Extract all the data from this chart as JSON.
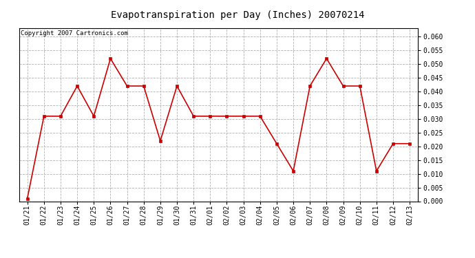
{
  "title": "Evapotranspiration per Day (Inches) 20070214",
  "copyright_text": "Copyright 2007 Cartronics.com",
  "line_color": "#cc0000",
  "marker_color": "#cc0000",
  "background_color": "#ffffff",
  "grid_color": "#b0b0b0",
  "ylim": [
    0.0,
    0.063
  ],
  "yticks": [
    0.0,
    0.005,
    0.01,
    0.015,
    0.02,
    0.025,
    0.03,
    0.035,
    0.04,
    0.045,
    0.05,
    0.055,
    0.06
  ],
  "dates": [
    "01/21",
    "01/22",
    "01/23",
    "01/24",
    "01/25",
    "01/26",
    "01/27",
    "01/28",
    "01/29",
    "01/30",
    "01/31",
    "02/01",
    "02/02",
    "02/03",
    "02/04",
    "02/05",
    "02/06",
    "02/07",
    "02/08",
    "02/09",
    "02/10",
    "02/11",
    "02/12",
    "02/13"
  ],
  "values": [
    0.001,
    0.031,
    0.031,
    0.042,
    0.031,
    0.052,
    0.042,
    0.042,
    0.022,
    0.042,
    0.031,
    0.031,
    0.031,
    0.031,
    0.031,
    0.021,
    0.011,
    0.042,
    0.052,
    0.042,
    0.042,
    0.011,
    0.021,
    0.021
  ],
  "title_fontsize": 10,
  "tick_fontsize": 7,
  "copyright_fontsize": 6.5
}
